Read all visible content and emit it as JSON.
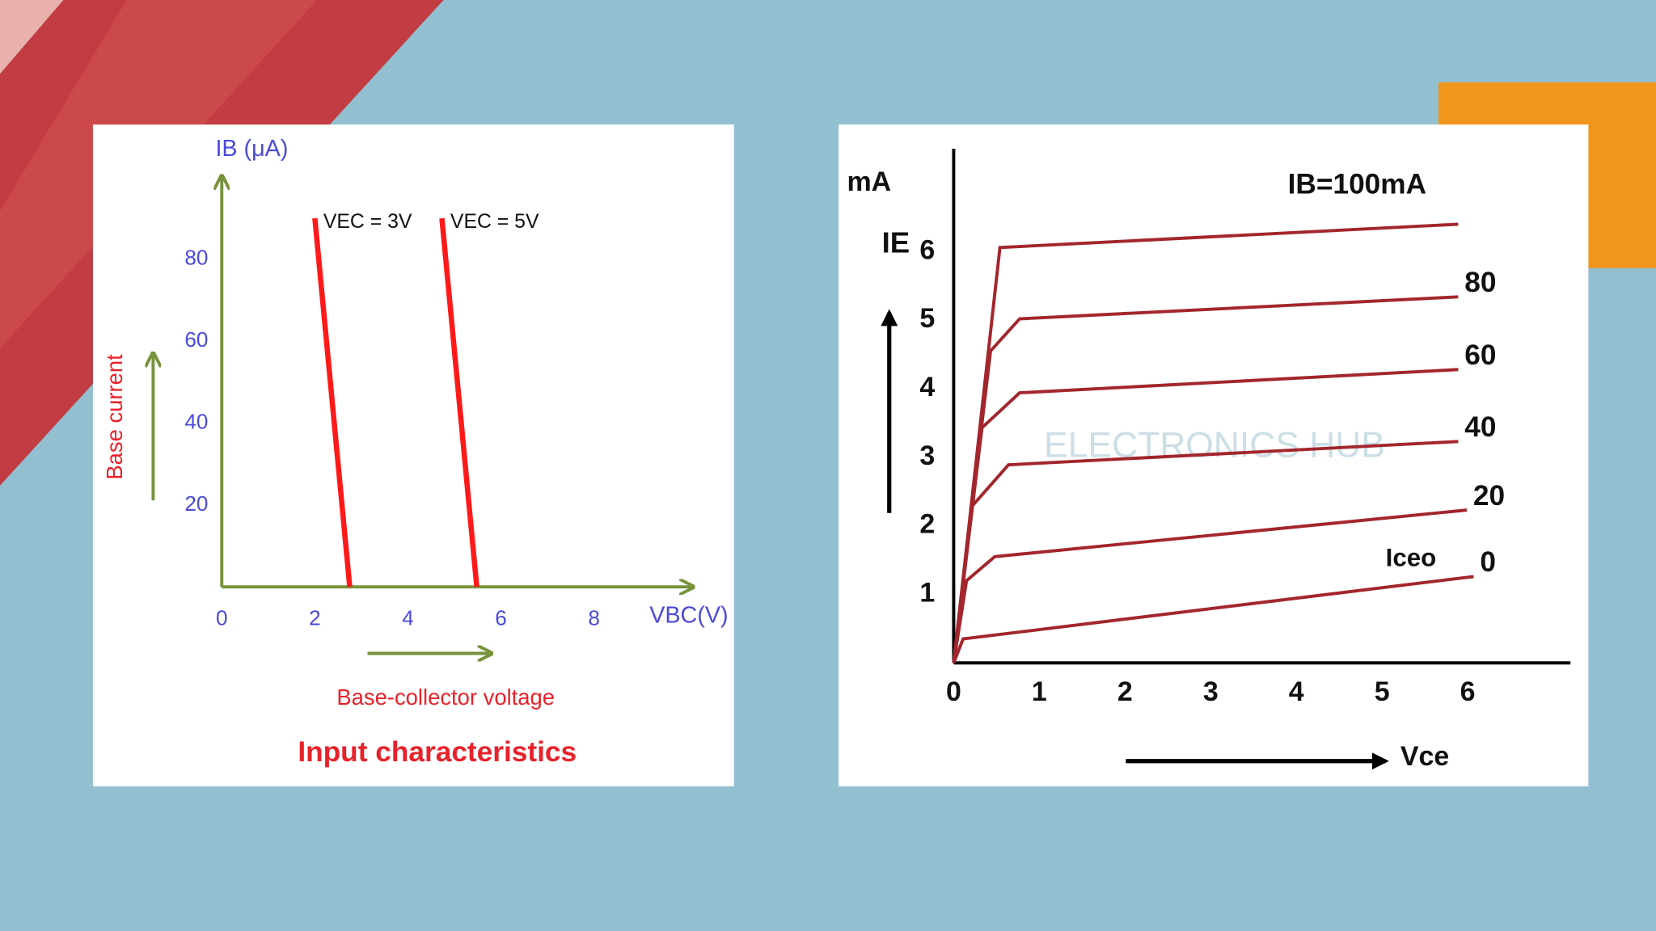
{
  "chart_data": [
    {
      "type": "line",
      "title": "Input characteristics",
      "x_label": "VBC(V)",
      "y_label": "IB (μA)",
      "x_title": "Base-collector voltage",
      "y_title": "Base current",
      "xlim": [
        0,
        10.1
      ],
      "ylim": [
        0,
        100
      ],
      "xticks": [
        0,
        2,
        4,
        6,
        8
      ],
      "yticks": [
        20,
        40,
        60,
        80
      ],
      "grid": false,
      "series": [
        {
          "name": "VEC = 3V",
          "color": "#ff1a1a",
          "x": [
            2.0,
            2.75
          ],
          "values": [
            90,
            0
          ]
        },
        {
          "name": "VEC = 5V",
          "color": "#ff1a1a",
          "x": [
            4.73,
            5.48
          ],
          "values": [
            90,
            0
          ]
        }
      ]
    },
    {
      "type": "line",
      "y_unit": "mA",
      "y_label": "IE",
      "x_label": "Vce",
      "annotation": "Iceo",
      "watermark": "ELECTRONICS HUB",
      "xlim": [
        0,
        7.2
      ],
      "ylim": [
        0,
        7.5
      ],
      "xticks": [
        0,
        1,
        2,
        3,
        4,
        5,
        6
      ],
      "yticks": [
        1,
        2,
        3,
        4,
        5,
        6
      ],
      "grid": false,
      "series": [
        {
          "name": "IB=100mA",
          "color": "#a3262c",
          "x": [
            0,
            0.54,
            5.89
          ],
          "values": [
            0,
            6.06,
            6.4
          ]
        },
        {
          "name": "80",
          "color": "#a3262c",
          "x": [
            0,
            0.43,
            0.77,
            5.89
          ],
          "values": [
            0,
            4.55,
            5.02,
            5.34
          ]
        },
        {
          "name": "60",
          "color": "#a3262c",
          "x": [
            0,
            0.33,
            0.77,
            5.89
          ],
          "values": [
            0,
            3.43,
            3.94,
            4.28
          ]
        },
        {
          "name": "40",
          "color": "#a3262c",
          "x": [
            0,
            0.21,
            0.64,
            5.89
          ],
          "values": [
            0,
            2.28,
            2.89,
            3.23
          ]
        },
        {
          "name": "20",
          "color": "#a3262c",
          "x": [
            0,
            0.15,
            0.48,
            5.99
          ],
          "values": [
            0,
            1.2,
            1.55,
            2.23
          ]
        },
        {
          "name": "0",
          "color": "#a3262c",
          "x": [
            0,
            0.11,
            6.07
          ],
          "values": [
            0,
            0.35,
            1.26
          ]
        }
      ]
    }
  ]
}
